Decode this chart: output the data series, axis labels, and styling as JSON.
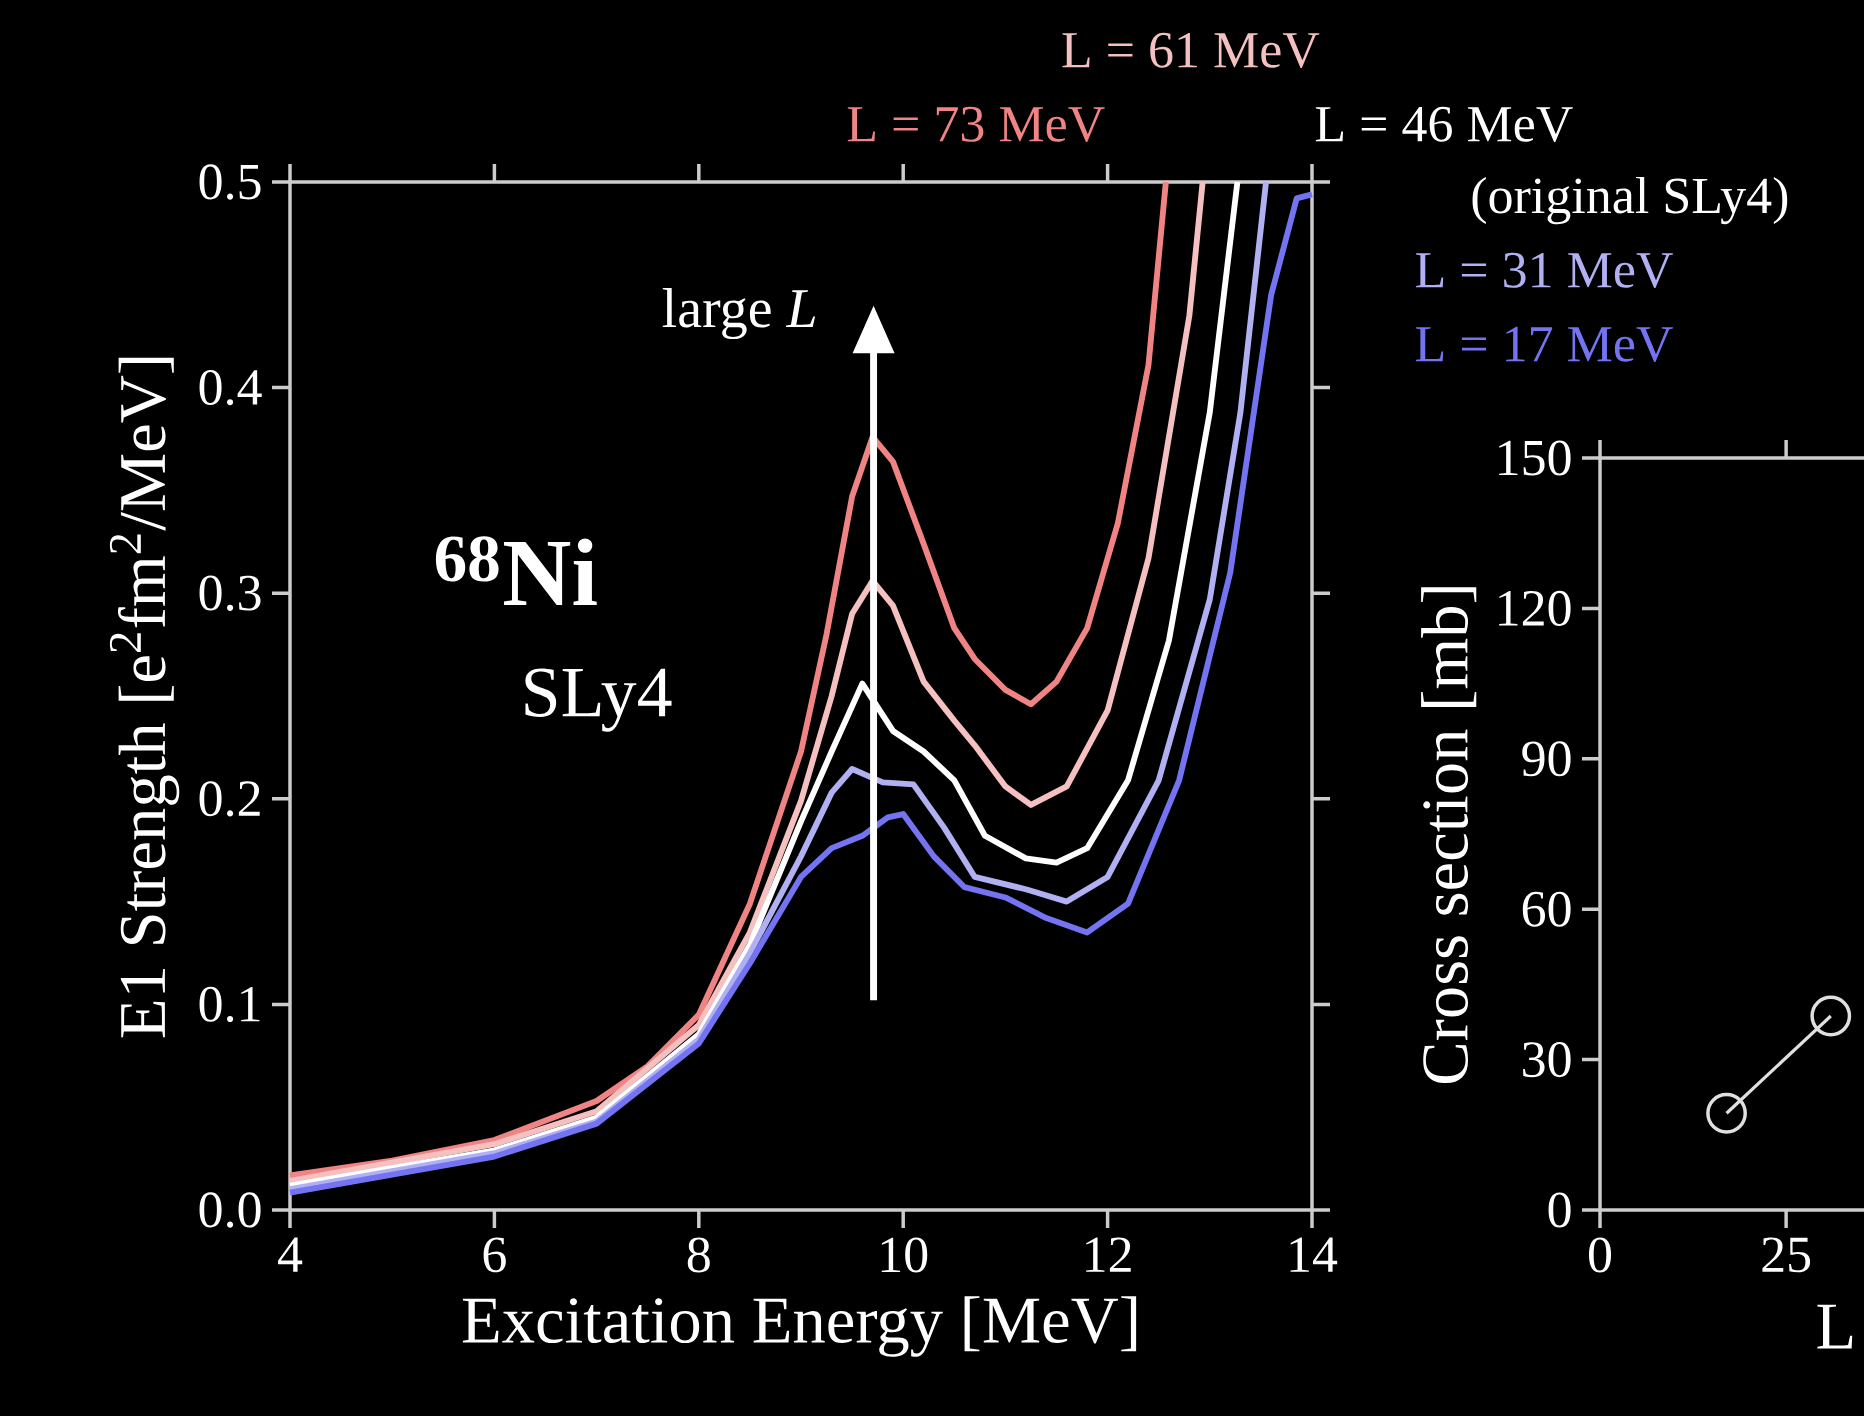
{
  "chart_data": [
    {
      "type": "line",
      "xlabel": "Excitation Energy [MeV]",
      "ylabel": "E1 Strength [e$^{2}$fm$^{2}$/MeV]",
      "xlim": [
        4,
        14
      ],
      "ylim": [
        0,
        0.5
      ],
      "xticks": [
        4,
        6,
        8,
        10,
        12,
        14
      ],
      "yticks": [
        {
          "value": 0,
          "label": "0.0"
        },
        0.1,
        0.2,
        0.3,
        0.4,
        0.5
      ],
      "marker": "none",
      "line_style": "solid",
      "annotations": [
        "large *L*",
        "$^{68}$Ni",
        "SLy4",
        "(original SLy4)"
      ],
      "series": [
        {
          "name": "L = 73 MeV",
          "color": "#f08484",
          "x": [
            4,
            5,
            6,
            7,
            7.5,
            8,
            8.5,
            9,
            9.25,
            9.5,
            9.7,
            9.9,
            10.2,
            10.5,
            10.7,
            11,
            11.25,
            11.5,
            11.8,
            12.1,
            12.4,
            12.57
          ],
          "values": [
            0.0168,
            0.024,
            0.034,
            0.053,
            0.07,
            0.095,
            0.149,
            0.223,
            0.28,
            0.347,
            0.376,
            0.364,
            0.324,
            0.283,
            0.268,
            0.253,
            0.246,
            0.257,
            0.283,
            0.334,
            0.411,
            0.5
          ]
        },
        {
          "name": "L = 61 MeV",
          "color": "#f5c0c0",
          "x": [
            4,
            6,
            7,
            8,
            8.5,
            9,
            9.3,
            9.5,
            9.7,
            9.9,
            10.2,
            10.5,
            10.7,
            11,
            11.25,
            11.6,
            12,
            12.4,
            12.8,
            12.93
          ],
          "values": [
            0.0141,
            0.032,
            0.048,
            0.09,
            0.135,
            0.199,
            0.25,
            0.29,
            0.306,
            0.294,
            0.257,
            0.238,
            0.226,
            0.206,
            0.197,
            0.206,
            0.243,
            0.317,
            0.435,
            0.5
          ]
        },
        {
          "name": "L = 46 MeV",
          "color": "#ffffff",
          "x": [
            4,
            6,
            7,
            8,
            8.5,
            9,
            9.3,
            9.6,
            9.9,
            10.2,
            10.5,
            10.8,
            11.2,
            11.5,
            11.8,
            12.2,
            12.6,
            13,
            13.27
          ],
          "values": [
            0.0118,
            0.029,
            0.045,
            0.0855,
            0.129,
            0.189,
            0.223,
            0.256,
            0.233,
            0.223,
            0.209,
            0.182,
            0.171,
            0.169,
            0.176,
            0.209,
            0.277,
            0.388,
            0.5
          ]
        },
        {
          "name": "L = 31 MeV",
          "color": "#b0b0f2",
          "x": [
            4,
            6,
            7,
            8,
            8.5,
            9,
            9.3,
            9.5,
            9.8,
            10.1,
            10.4,
            10.7,
            11.2,
            11.6,
            12,
            12.5,
            13,
            13.3,
            13.55
          ],
          "values": [
            0.0101,
            0.0276,
            0.043,
            0.083,
            0.125,
            0.172,
            0.203,
            0.2145,
            0.208,
            0.207,
            0.186,
            0.162,
            0.156,
            0.15,
            0.162,
            0.209,
            0.297,
            0.388,
            0.5
          ]
        },
        {
          "name": "L = 17 MeV",
          "color": "#7474f2",
          "x": [
            4,
            6,
            7,
            8,
            8.5,
            9,
            9.3,
            9.6,
            9.85,
            10,
            10.3,
            10.6,
            11,
            11.4,
            11.8,
            12.2,
            12.7,
            13.2,
            13.6,
            13.85,
            14
          ],
          "values": [
            0.0084,
            0.026,
            0.042,
            0.081,
            0.12,
            0.162,
            0.176,
            0.182,
            0.191,
            0.1926,
            0.172,
            0.157,
            0.152,
            0.142,
            0.135,
            0.149,
            0.209,
            0.31,
            0.445,
            0.492,
            0.494
          ]
        }
      ]
    },
    {
      "type": "line",
      "xlabel": "L",
      "ylabel": "Cross section [mb]",
      "xlim": [
        0,
        36
      ],
      "ylim": [
        0,
        150
      ],
      "xticks": [
        0,
        25
      ],
      "yticks": [
        0,
        30,
        60,
        90,
        120,
        150
      ],
      "marker": "circle",
      "line_style": "solid",
      "series": [
        {
          "color": "#e0e0e0",
          "x": [
            17,
            31
          ],
          "values": [
            19.3,
            38.7
          ]
        }
      ]
    }
  ]
}
